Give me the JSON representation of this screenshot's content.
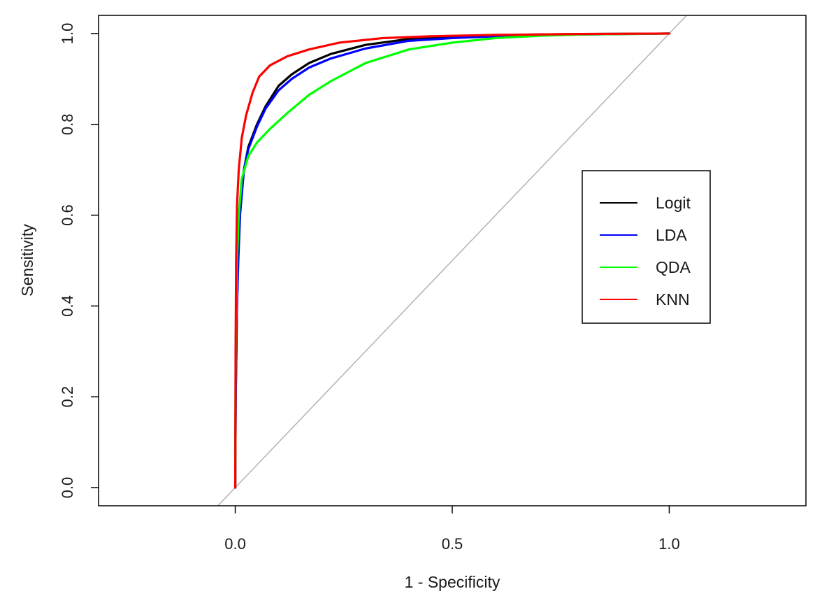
{
  "chart_data": {
    "type": "line",
    "title": "",
    "xlabel": "1 - Specificity",
    "ylabel": "Sensitivity",
    "xlim": [
      -0.315,
      1.315
    ],
    "ylim": [
      -0.04,
      1.04
    ],
    "x_ticks": [
      0.0,
      0.5,
      1.0
    ],
    "x_tick_labels": [
      "0.0",
      "0.5",
      "1.0"
    ],
    "y_ticks": [
      0.0,
      0.2,
      0.4,
      0.6,
      0.8,
      1.0
    ],
    "y_tick_labels": [
      "0.0",
      "0.2",
      "0.4",
      "0.6",
      "0.8",
      "1.0"
    ],
    "grid": false,
    "legend_position": "right",
    "reference_line": {
      "color": "#b3b3b3",
      "points": [
        [
          -0.04,
          -0.04
        ],
        [
          1.04,
          1.04
        ]
      ]
    },
    "series": [
      {
        "name": "Logit",
        "color": "#000000",
        "points": [
          [
            0,
            0
          ],
          [
            0.001,
            0.2
          ],
          [
            0.004,
            0.4
          ],
          [
            0.006,
            0.5
          ],
          [
            0.01,
            0.6
          ],
          [
            0.02,
            0.7
          ],
          [
            0.03,
            0.75
          ],
          [
            0.05,
            0.8
          ],
          [
            0.07,
            0.84
          ],
          [
            0.1,
            0.885
          ],
          [
            0.13,
            0.91
          ],
          [
            0.17,
            0.935
          ],
          [
            0.22,
            0.955
          ],
          [
            0.3,
            0.975
          ],
          [
            0.4,
            0.988
          ],
          [
            0.5,
            0.993
          ],
          [
            0.6,
            0.996
          ],
          [
            0.7,
            0.998
          ],
          [
            0.8,
            0.999
          ],
          [
            1.0,
            1.0
          ]
        ]
      },
      {
        "name": "LDA",
        "color": "#0000ff",
        "points": [
          [
            0,
            0
          ],
          [
            0.001,
            0.2
          ],
          [
            0.004,
            0.4
          ],
          [
            0.007,
            0.5
          ],
          [
            0.011,
            0.6
          ],
          [
            0.02,
            0.7
          ],
          [
            0.03,
            0.745
          ],
          [
            0.05,
            0.795
          ],
          [
            0.07,
            0.835
          ],
          [
            0.1,
            0.875
          ],
          [
            0.13,
            0.9
          ],
          [
            0.17,
            0.925
          ],
          [
            0.22,
            0.945
          ],
          [
            0.3,
            0.967
          ],
          [
            0.4,
            0.984
          ],
          [
            0.5,
            0.99
          ],
          [
            0.6,
            0.994
          ],
          [
            0.7,
            0.997
          ],
          [
            0.8,
            0.998
          ],
          [
            1.0,
            1.0
          ]
        ]
      },
      {
        "name": "QDA",
        "color": "#00ff00",
        "points": [
          [
            0,
            0
          ],
          [
            0.001,
            0.3
          ],
          [
            0.004,
            0.5
          ],
          [
            0.008,
            0.6
          ],
          [
            0.015,
            0.68
          ],
          [
            0.03,
            0.73
          ],
          [
            0.05,
            0.76
          ],
          [
            0.08,
            0.79
          ],
          [
            0.12,
            0.825
          ],
          [
            0.17,
            0.865
          ],
          [
            0.22,
            0.895
          ],
          [
            0.3,
            0.935
          ],
          [
            0.4,
            0.965
          ],
          [
            0.5,
            0.98
          ],
          [
            0.6,
            0.99
          ],
          [
            0.7,
            0.995
          ],
          [
            0.8,
            0.998
          ],
          [
            0.9,
            0.999
          ],
          [
            1.0,
            1.0
          ]
        ]
      },
      {
        "name": "KNN",
        "color": "#ff0000",
        "points": [
          [
            0,
            0
          ],
          [
            0.0008,
            0.3
          ],
          [
            0.002,
            0.5
          ],
          [
            0.004,
            0.62
          ],
          [
            0.008,
            0.7
          ],
          [
            0.015,
            0.77
          ],
          [
            0.025,
            0.82
          ],
          [
            0.04,
            0.87
          ],
          [
            0.055,
            0.905
          ],
          [
            0.08,
            0.93
          ],
          [
            0.12,
            0.95
          ],
          [
            0.17,
            0.965
          ],
          [
            0.24,
            0.98
          ],
          [
            0.34,
            0.99
          ],
          [
            0.45,
            0.994
          ],
          [
            0.6,
            0.997
          ],
          [
            0.8,
            0.999
          ],
          [
            1.0,
            1.0
          ]
        ]
      }
    ]
  }
}
